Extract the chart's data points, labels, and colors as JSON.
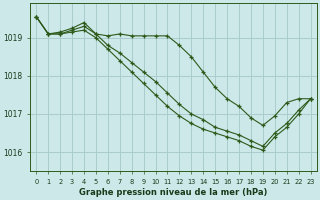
{
  "background_color": "#cce8e8",
  "grid_color": "#aacccc",
  "line_color": "#2d5a1b",
  "title": "Graphe pression niveau de la mer (hPa)",
  "ylabel_ticks": [
    1016,
    1017,
    1018,
    1019
  ],
  "xlim": [
    -0.5,
    23.5
  ],
  "ylim": [
    1015.5,
    1019.9
  ],
  "series": [
    {
      "x": [
        0,
        1,
        2,
        3,
        4,
        5,
        6,
        7,
        8,
        9,
        10,
        11,
        12,
        13,
        14,
        15,
        16,
        17,
        18,
        19,
        20,
        21,
        22,
        23
      ],
      "y": [
        1019.55,
        1019.1,
        1019.1,
        1019.2,
        1019.3,
        1019.1,
        1019.05,
        1019.1,
        1019.05,
        1019.05,
        1019.05,
        1019.05,
        1018.8,
        1018.5,
        1018.1,
        1017.7,
        1017.4,
        1017.2,
        1016.9,
        1016.7,
        1016.95,
        1017.3,
        1017.4,
        1017.4
      ]
    },
    {
      "x": [
        0,
        1,
        2,
        3,
        4,
        5,
        6,
        7,
        8,
        9,
        10,
        11,
        12,
        13,
        14,
        15,
        16,
        17,
        18,
        19,
        20,
        21,
        22,
        23
      ],
      "y": [
        1019.55,
        1019.1,
        1019.15,
        1019.25,
        1019.4,
        1019.1,
        1018.8,
        1018.6,
        1018.35,
        1018.1,
        1017.85,
        1017.55,
        1017.25,
        1017.0,
        1016.85,
        1016.65,
        1016.55,
        1016.45,
        1016.3,
        1016.15,
        1016.5,
        1016.75,
        1017.1,
        1017.4
      ]
    },
    {
      "x": [
        0,
        1,
        2,
        3,
        4,
        5,
        6,
        7,
        8,
        9,
        10,
        11,
        12,
        13,
        14,
        15,
        16,
        17,
        18,
        19,
        20,
        21,
        22,
        23
      ],
      "y": [
        1019.55,
        1019.1,
        1019.1,
        1019.15,
        1019.2,
        1019.0,
        1018.7,
        1018.4,
        1018.1,
        1017.8,
        1017.5,
        1017.2,
        1016.95,
        1016.75,
        1016.6,
        1016.5,
        1016.4,
        1016.3,
        1016.15,
        1016.05,
        1016.4,
        1016.65,
        1017.0,
        1017.4
      ]
    }
  ]
}
